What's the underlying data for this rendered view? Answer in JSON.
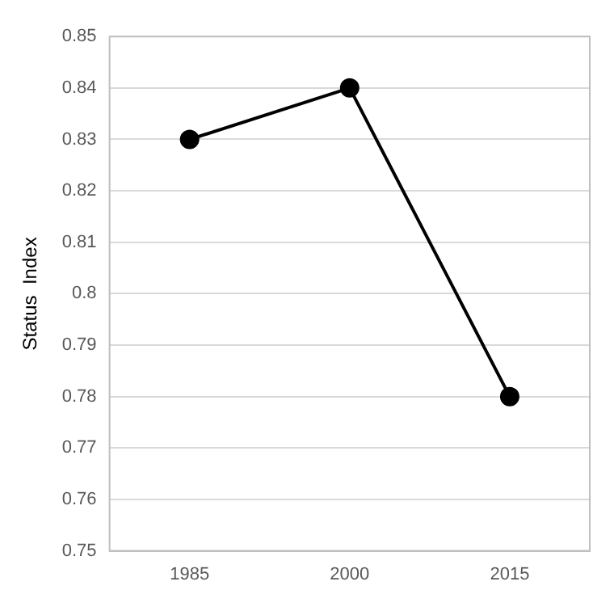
{
  "chart_data": {
    "type": "line",
    "ylabel": "Status  Index",
    "categories": [
      "1985",
      "2000",
      "2015"
    ],
    "series": [
      {
        "color": "#000000",
        "values": [
          0.83,
          0.84,
          0.78
        ]
      }
    ],
    "ylim": [
      0.75,
      0.85
    ],
    "yticks": [
      0.75,
      0.76,
      0.77,
      0.78,
      0.79,
      0.8,
      0.81,
      0.82,
      0.83,
      0.84,
      0.85
    ],
    "grid": "y",
    "legend": false,
    "marker": "circle",
    "line_style": "solid"
  }
}
